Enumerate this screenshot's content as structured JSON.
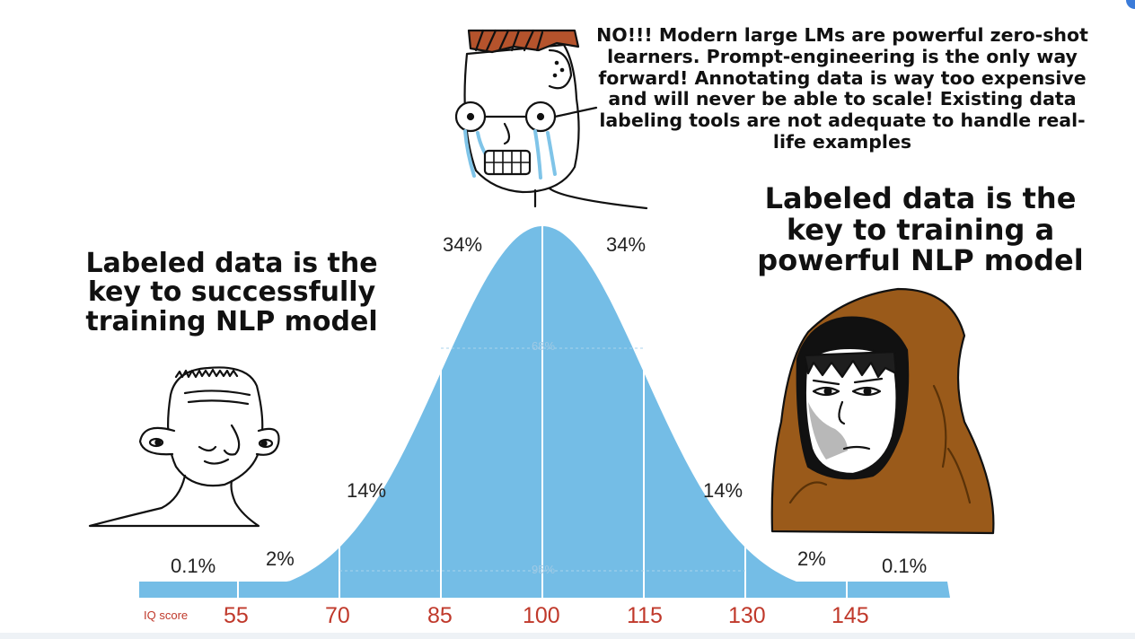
{
  "captions": {
    "top": "NO!!! Modern large LMs are powerful zero-shot learners. Prompt-engineering is the only way forward! Annotating data is way too expensive and will never be able to scale!  Existing data labeling tools are not adequate to handle real-life examples",
    "left": "Labeled data is the key to successfully training NLP model",
    "right": "Labeled data is the key to training a powerful NLP model"
  },
  "curve": {
    "axis_label": "IQ score",
    "ticks": [
      "55",
      "70",
      "85",
      "100",
      "115",
      "130",
      "145"
    ],
    "percentages": {
      "left_outer": "0.1%",
      "left_tail": "2%",
      "left_mid": "14%",
      "left_center": "34%",
      "right_center": "34%",
      "right_mid": "14%",
      "right_tail": "2%",
      "right_outer": "0.1%"
    },
    "band_labels": {
      "inner": "68%",
      "outer": "95%"
    },
    "fill_color": "#74bde6",
    "tick_color": "#c0392b"
  },
  "figures": {
    "left": "simple-character",
    "center": "crying-character",
    "right": "hooded-character"
  }
}
